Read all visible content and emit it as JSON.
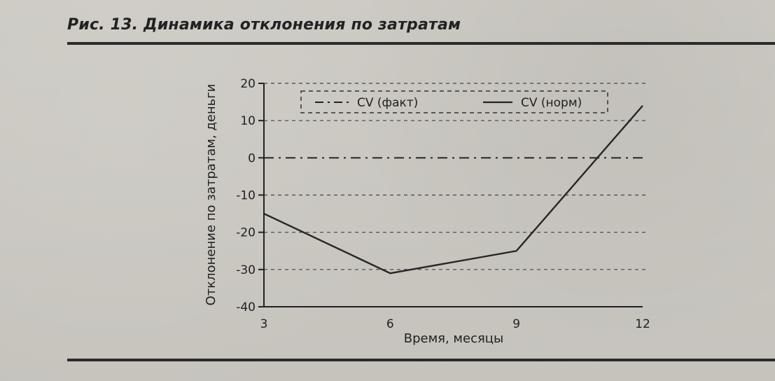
{
  "figure": {
    "title": "Рис. 13. Динамика отклонения по затратам"
  },
  "colors": {
    "ink": "#222222",
    "grid": "#444444",
    "line": "#262626"
  },
  "chart_data": {
    "type": "line",
    "x": [
      3,
      6,
      9,
      12
    ],
    "xlabel": "Время, месяцы",
    "ylabel": "Отклонение по затратам, деньги",
    "xlim": [
      3,
      12
    ],
    "ylim": [
      -40,
      20
    ],
    "xticks": [
      3,
      6,
      9,
      12
    ],
    "yticks": [
      20,
      10,
      0,
      -10,
      -20,
      -30,
      -40
    ],
    "grid": true,
    "legend_position": "top",
    "series": [
      {
        "name": "CV (факт)",
        "style": "dash-dot",
        "values": [
          0,
          0,
          0,
          0
        ]
      },
      {
        "name": "CV (норм)",
        "style": "solid",
        "values": [
          -15,
          -31,
          -25,
          14
        ]
      }
    ]
  }
}
